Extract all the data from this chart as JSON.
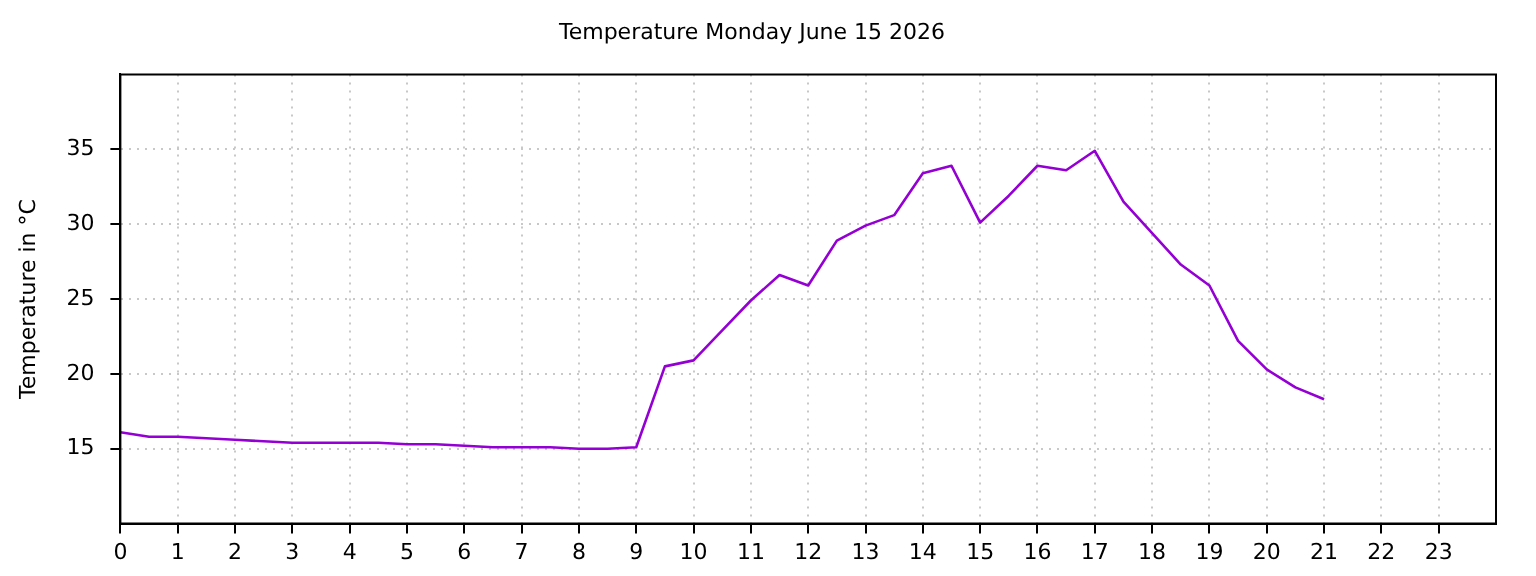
{
  "chart_data": {
    "type": "line",
    "title": "Temperature Monday June 15 2026",
    "ylabel": "Temperature in °C",
    "x": [
      0,
      0.5,
      1,
      1.5,
      2,
      2.5,
      3,
      3.5,
      4,
      4.5,
      5,
      5.5,
      6,
      6.5,
      7,
      7.5,
      8,
      8.5,
      9,
      9.5,
      10,
      10.5,
      11,
      11.5,
      12,
      12.5,
      13,
      13.5,
      14,
      14.5,
      15,
      15.5,
      16,
      16.5,
      17,
      17.5,
      18,
      18.5,
      19,
      19.5,
      20,
      20.5,
      21
    ],
    "series": [
      {
        "color": "#9400d3",
        "values": [
          16.1,
          15.8,
          15.8,
          15.7,
          15.6,
          15.5,
          15.4,
          15.4,
          15.4,
          15.4,
          15.3,
          15.3,
          15.2,
          15.1,
          15.1,
          15.1,
          15.0,
          15.0,
          15.1,
          20.5,
          20.9,
          22.9,
          24.9,
          26.6,
          25.9,
          28.9,
          29.9,
          30.6,
          33.4,
          33.9,
          30.1,
          31.9,
          33.9,
          33.6,
          34.9,
          31.5,
          29.4,
          27.3,
          25.9,
          22.2,
          20.3,
          19.1,
          18.3
        ]
      }
    ],
    "xlim": [
      0,
      24
    ],
    "xticks": [
      0,
      1,
      2,
      3,
      4,
      5,
      6,
      7,
      8,
      9,
      10,
      11,
      12,
      13,
      14,
      15,
      16,
      17,
      18,
      19,
      20,
      21,
      22,
      23
    ],
    "ylim": [
      10,
      40
    ],
    "yticks": [
      15,
      20,
      25,
      30,
      35
    ],
    "grid": true,
    "legend": false,
    "marker": "none",
    "line_style": "solid"
  }
}
